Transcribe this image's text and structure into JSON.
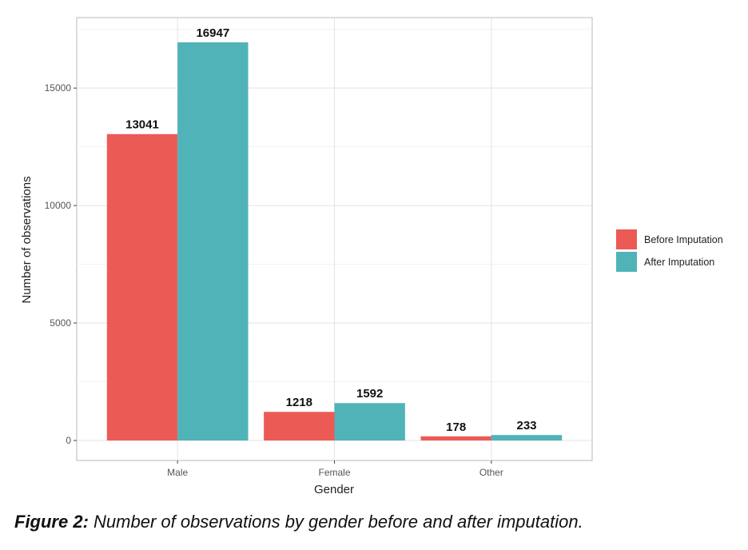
{
  "chart_data": {
    "type": "bar",
    "xlabel": "Gender",
    "ylabel": "Number of observations",
    "categories": [
      "Male",
      "Female",
      "Other"
    ],
    "series": [
      {
        "name": "Before Imputation",
        "color": "#EC5A56",
        "values": [
          13041,
          1218,
          178
        ]
      },
      {
        "name": "After Imputation",
        "color": "#50B3B8",
        "values": [
          16947,
          1592,
          233
        ]
      }
    ],
    "yticks": [
      0,
      5000,
      10000,
      15000
    ],
    "ylim": [
      -850,
      18000
    ],
    "grid": true,
    "legend": "right"
  },
  "caption": {
    "label": "Figure 2:",
    "text": " Number of observations by gender before and after imputation."
  }
}
